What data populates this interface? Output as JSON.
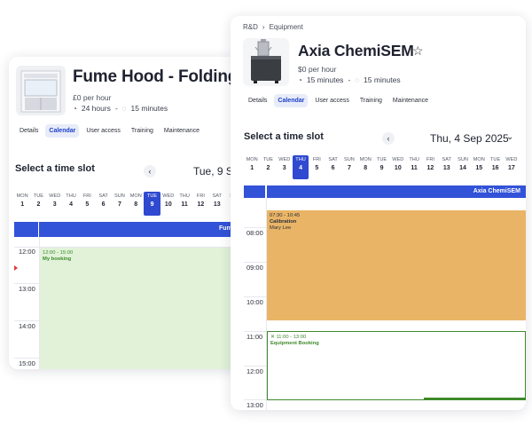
{
  "back": {
    "title": "Fume Hood - Folding",
    "price": "£0 per hour",
    "duration": "24 hours",
    "dash": "-",
    "min_duration": "15 minutes",
    "tabs": [
      "Details",
      "Calendar",
      "User access",
      "Training",
      "Maintenance"
    ],
    "active_tab": "Calendar",
    "slot_title": "Select a time slot",
    "date": "Tue, 9 S",
    "days": [
      {
        "n": "MON",
        "d": "1"
      },
      {
        "n": "TUE",
        "d": "2"
      },
      {
        "n": "WED",
        "d": "3"
      },
      {
        "n": "THU",
        "d": "4"
      },
      {
        "n": "FRI",
        "d": "5"
      },
      {
        "n": "SAT",
        "d": "6"
      },
      {
        "n": "SUN",
        "d": "7"
      },
      {
        "n": "MON",
        "d": "8"
      },
      {
        "n": "TUE",
        "d": "9"
      },
      {
        "n": "WED",
        "d": "10"
      },
      {
        "n": "THU",
        "d": "11"
      },
      {
        "n": "FRI",
        "d": "12"
      },
      {
        "n": "SAT",
        "d": "13"
      },
      {
        "n": "SU",
        "d": "1"
      }
    ],
    "column_header": "Fum",
    "times": [
      "12:00",
      "13:00",
      "14:00",
      "15:00"
    ],
    "booking_time": "12:00 - 15:00",
    "booking_label": "My booking",
    "booking_color": "#e1f2d9"
  },
  "front": {
    "breadcrumb_root": "R&D",
    "breadcrumb_child": "Equipment",
    "title": "Axia ChemiSEM",
    "price": "$0 per hour",
    "duration": "15 minutes",
    "dash": "-",
    "min_duration": "15 minutes",
    "tabs": [
      "Details",
      "Calendar",
      "User access",
      "Training",
      "Maintenance"
    ],
    "active_tab": "Calendar",
    "slot_title": "Select a time slot",
    "date": "Thu, 4 Sep 2025",
    "days": [
      {
        "n": "MON",
        "d": "1"
      },
      {
        "n": "TUE",
        "d": "2"
      },
      {
        "n": "WED",
        "d": "3"
      },
      {
        "n": "THU",
        "d": "4"
      },
      {
        "n": "FRI",
        "d": "5"
      },
      {
        "n": "SAT",
        "d": "6"
      },
      {
        "n": "SUN",
        "d": "7"
      },
      {
        "n": "MON",
        "d": "8"
      },
      {
        "n": "TUE",
        "d": "9"
      },
      {
        "n": "WED",
        "d": "10"
      },
      {
        "n": "THU",
        "d": "11"
      },
      {
        "n": "FRI",
        "d": "12"
      },
      {
        "n": "SAT",
        "d": "13"
      },
      {
        "n": "SUN",
        "d": "14"
      },
      {
        "n": "MON",
        "d": "15"
      },
      {
        "n": "TUE",
        "d": "16"
      },
      {
        "n": "WED",
        "d": "17"
      }
    ],
    "column_header": "Axia ChemiSEM",
    "times": [
      "08:00",
      "09:00",
      "10:00",
      "11:00",
      "12:00",
      "13:00"
    ],
    "event1_time": "07:30 - 10:45",
    "event1_title": "Calibration",
    "event1_user": "Mary Lee",
    "event1_color": "#e9b466",
    "event2_time": "✕ 11:00 - 13:00",
    "event2_title": "Equipment Booking",
    "accent": "#3252d8"
  }
}
